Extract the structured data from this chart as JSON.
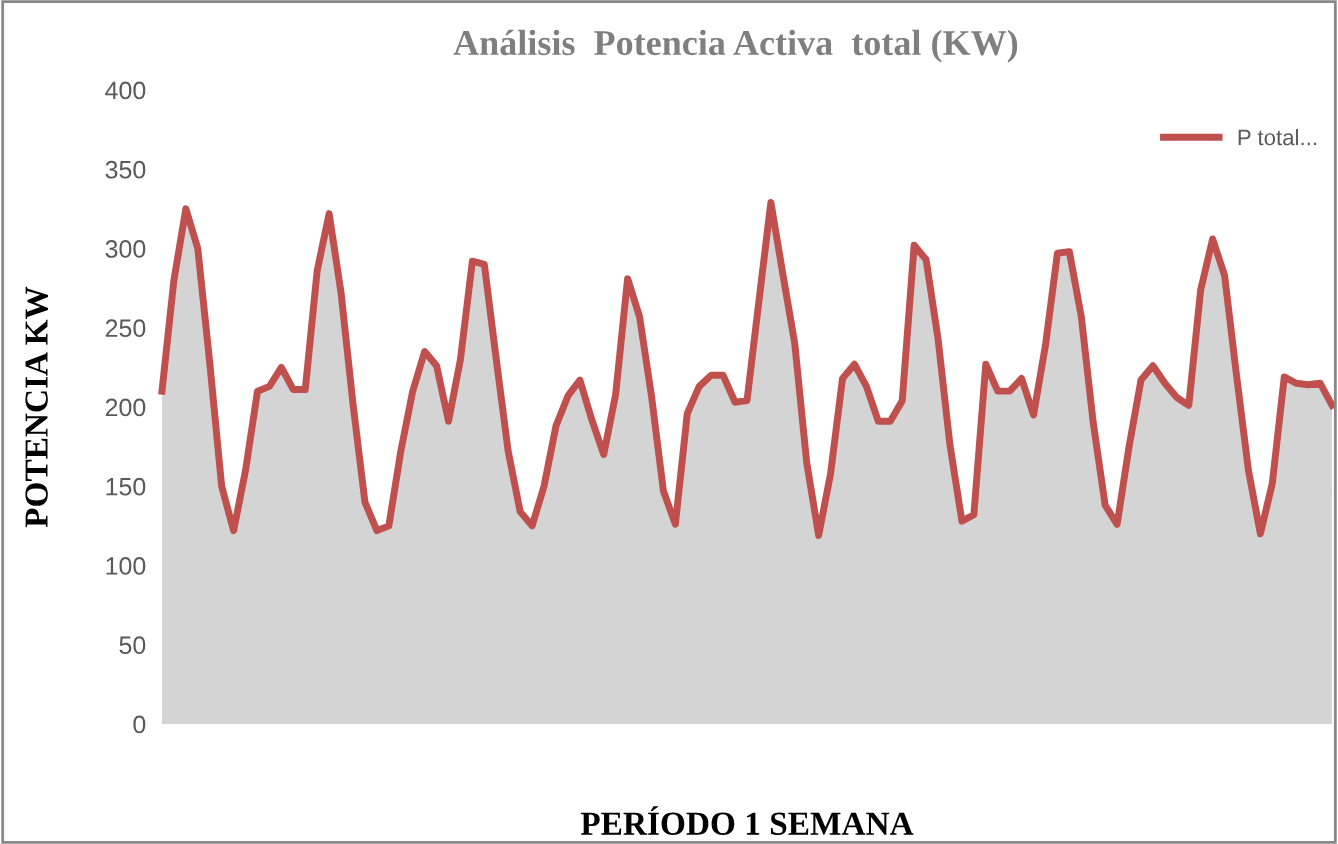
{
  "chart_data": {
    "type": "area",
    "title": "Análisis  Potencia Activa  total (KW)",
    "xlabel": "PERÍODO 1 SEMANA",
    "ylabel": "POTENCIA KW",
    "categories": [
      null,
      null,
      null,
      null,
      null,
      null,
      null,
      null,
      null,
      null,
      null,
      null,
      null,
      null,
      null,
      null,
      null,
      null,
      null,
      null,
      null,
      null,
      null,
      null,
      null,
      null,
      null,
      null,
      null,
      null,
      null,
      null,
      null,
      null,
      null,
      null,
      null,
      null,
      null,
      null,
      null,
      null,
      null,
      null,
      null,
      null,
      null,
      null,
      null,
      null,
      null,
      null,
      null,
      null,
      null,
      null,
      null,
      null,
      null,
      null,
      null,
      null,
      null,
      null,
      null,
      null,
      null,
      null,
      null,
      null,
      null,
      null,
      null,
      null,
      null,
      null,
      null,
      null,
      null,
      null,
      null,
      null,
      null,
      null,
      null,
      null,
      null,
      null,
      null,
      null,
      null,
      null,
      null,
      null,
      null,
      null,
      null,
      null,
      null
    ],
    "series": [
      {
        "name": "P total...",
        "color": "#c0504d",
        "values": [
          210,
          280,
          325,
          300,
          228,
          150,
          122,
          160,
          210,
          213,
          225,
          211,
          211,
          286,
          322,
          272,
          202,
          140,
          122,
          125,
          172,
          210,
          235,
          226,
          191,
          230,
          292,
          290,
          230,
          172,
          134,
          125,
          150,
          188,
          207,
          217,
          192,
          170,
          208,
          281,
          257,
          207,
          147,
          126,
          196,
          213,
          220,
          220,
          203,
          204,
          267,
          329,
          284,
          240,
          165,
          119,
          158,
          218,
          227,
          213,
          191,
          191,
          204,
          302,
          293,
          243,
          176,
          128,
          132,
          227,
          210,
          210,
          218,
          195,
          239,
          297,
          298,
          257,
          190,
          138,
          126,
          175,
          217,
          226,
          215,
          206,
          201,
          274,
          306,
          283,
          220,
          160,
          120,
          152,
          219,
          215,
          214,
          215,
          201
        ]
      }
    ],
    "ylim": [
      0,
      400
    ],
    "yticks": [
      0,
      50,
      100,
      150,
      200,
      250,
      300,
      350,
      400
    ],
    "grid": false,
    "legend": "top right"
  }
}
